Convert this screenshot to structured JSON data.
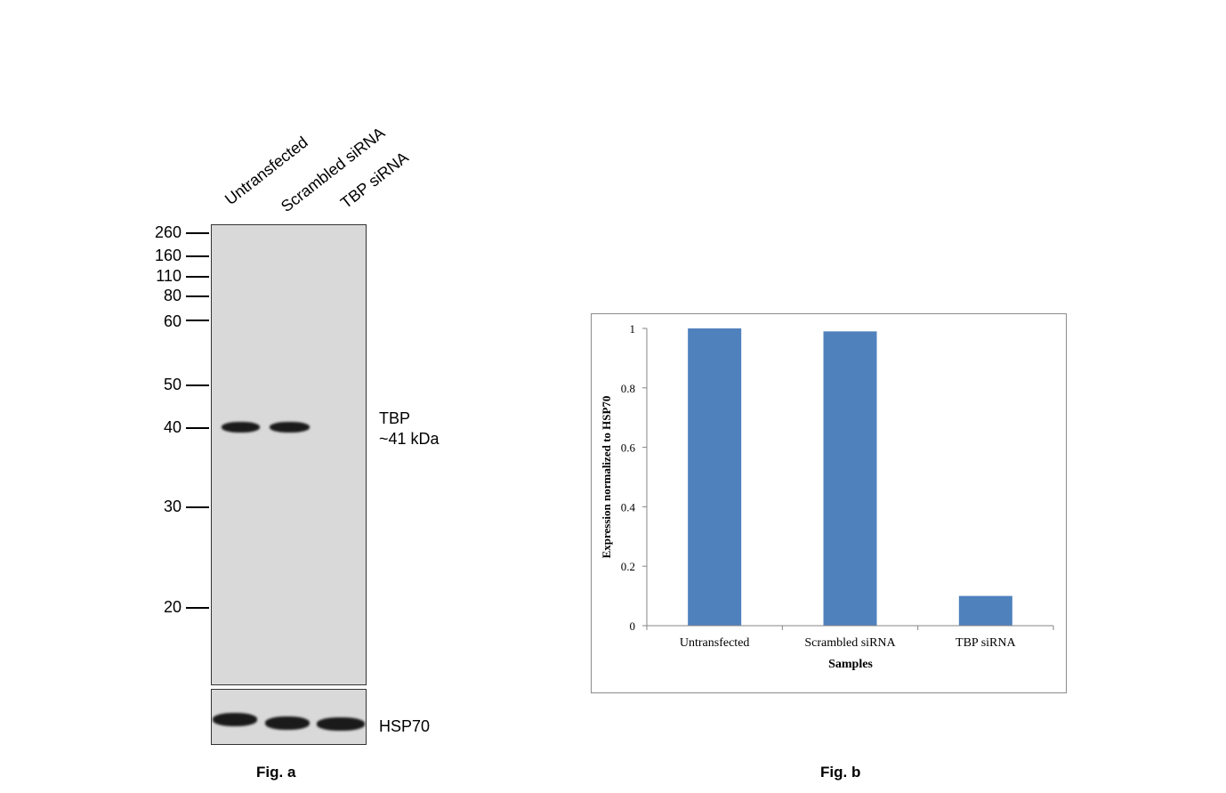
{
  "fig_a": {
    "caption": "Fig. a",
    "lanes": [
      "Untransfected",
      "Scrambled siRNA",
      "TBP siRNA"
    ],
    "markers": [
      "260",
      "160",
      "110",
      "80",
      "60",
      "50",
      "40",
      "30",
      "20"
    ],
    "target_label": "TBP",
    "target_size": "~41 kDa",
    "loading_label": "HSP70"
  },
  "fig_b": {
    "caption": "Fig. b"
  },
  "chart_data": {
    "type": "bar",
    "categories": [
      "Untransfected",
      "Scrambled siRNA",
      "TBP siRNA"
    ],
    "values": [
      1.0,
      0.99,
      0.1
    ],
    "title": "",
    "xlabel": "Samples",
    "ylabel": "Expression normalized to HSP70",
    "ylim": [
      0,
      1
    ],
    "yticks": [
      "0",
      "0.2",
      "0.4",
      "0.6",
      "0.8",
      "1"
    ],
    "bar_color": "#4f81bd",
    "grid": false,
    "legend": "none"
  }
}
